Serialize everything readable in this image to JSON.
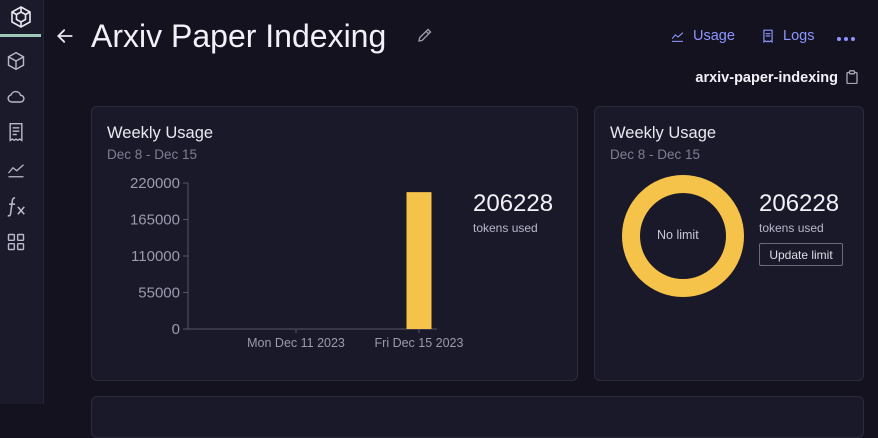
{
  "header": {
    "title": "Arxiv Paper Indexing",
    "slug": "arxiv-paper-indexing",
    "usage_label": "Usage",
    "logs_label": "Logs"
  },
  "icons": {
    "sidebar": [
      "box-icon",
      "cloud-icon",
      "receipt-icon",
      "chart-line-icon",
      "function-icon",
      "grid-icon"
    ],
    "header": [
      "back-arrow-icon",
      "pencil-icon",
      "usage-chart-icon",
      "logs-icon",
      "more-icon",
      "copy-icon"
    ]
  },
  "colors": {
    "background": "#14121f",
    "card": "#1a1929",
    "accent": "#8e95ff",
    "bar": "#f6c34a",
    "donut": "#f6c34a"
  },
  "usage_card": {
    "title": "Weekly Usage",
    "date_range": "Dec 8 - Dec 15",
    "tokens_value": "206228",
    "tokens_label": "tokens used"
  },
  "limit_card": {
    "title": "Weekly Usage",
    "date_range": "Dec 8 - Dec 15",
    "tokens_value": "206228",
    "tokens_label": "tokens used",
    "donut_label": "No limit",
    "update_button": "Update limit"
  },
  "chart_data": {
    "type": "bar",
    "title": "",
    "xlabel": "",
    "ylabel": "",
    "ylim": [
      0,
      220000
    ],
    "yticks": [
      "220000",
      "165000",
      "110000",
      "55000",
      "0"
    ],
    "x_tick_labels": [
      "Mon Dec 11 2023",
      "Fri Dec 15 2023"
    ],
    "categories": [
      "Fri Dec 15 2023"
    ],
    "values": [
      206228
    ],
    "grid": false,
    "legend": "none"
  }
}
